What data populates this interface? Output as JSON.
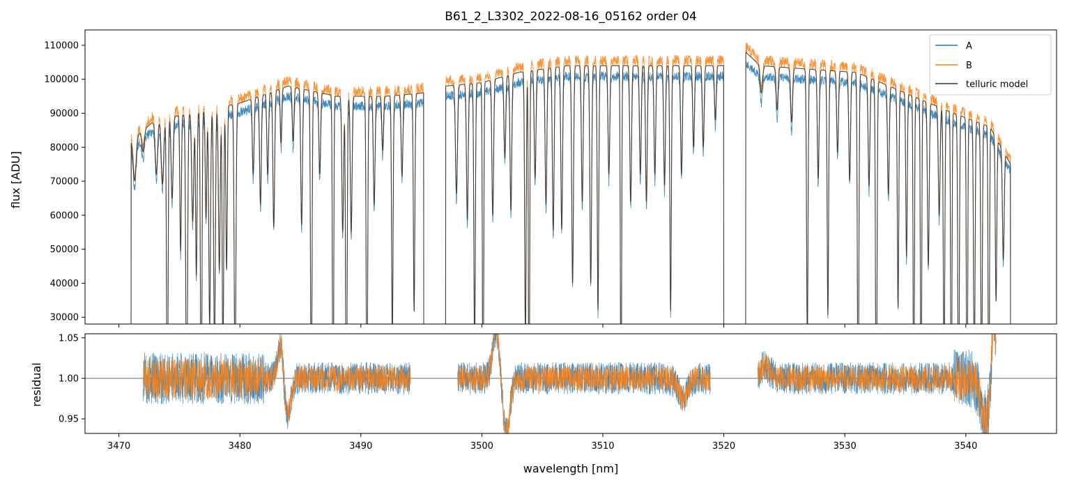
{
  "chart_data": [
    {
      "type": "line",
      "title": "B61_2_L3302_2022-08-16_05162  order 04",
      "xlabel": "",
      "ylabel": "flux [ADU]",
      "xlim": [
        3467.2,
        3547.5
      ],
      "ylim": [
        28000,
        114500
      ],
      "yticks": [
        30000,
        40000,
        50000,
        60000,
        70000,
        80000,
        90000,
        100000,
        110000
      ],
      "ytick_labels": [
        "30000",
        "40000",
        "50000",
        "60000",
        "70000",
        "80000",
        "90000",
        "100000",
        "110000"
      ],
      "xticks": [
        3470,
        3480,
        3490,
        3500,
        3510,
        3520,
        3530,
        3540
      ],
      "grid": false,
      "legend": "top-right",
      "segments": [
        [
          3471.0,
          3495.2
        ],
        [
          3497.0,
          3520.0
        ],
        [
          3521.8,
          3543.7
        ]
      ],
      "continuum": {
        "x": [
          3471,
          3473,
          3476,
          3480,
          3484,
          3488,
          3492,
          3495.2,
          3497,
          3500,
          3503,
          3507,
          3511,
          3515,
          3520,
          3521.8,
          3523,
          3527,
          3531,
          3535,
          3539,
          3542,
          3543.7
        ],
        "y": [
          82000,
          88000,
          90000,
          93000,
          98000,
          95000,
          95000,
          96000,
          98000,
          99000,
          102000,
          104000,
          104000,
          104000,
          104000,
          108000,
          104000,
          103000,
          102000,
          96000,
          90000,
          86000,
          75000
        ]
      },
      "absorption_lines": [
        [
          3471.3,
          8000,
          0.12
        ],
        [
          3472.0,
          4000,
          0.1
        ],
        [
          3473.1,
          10000,
          0.1
        ],
        [
          3473.6,
          12000,
          0.1
        ],
        [
          3474.0,
          60000,
          0.06
        ],
        [
          3474.4,
          15000,
          0.08
        ],
        [
          3475.1,
          25000,
          0.06
        ],
        [
          3475.6,
          58000,
          0.07
        ],
        [
          3476.1,
          20000,
          0.08
        ],
        [
          3476.4,
          30000,
          0.06
        ],
        [
          3476.8,
          60000,
          0.06
        ],
        [
          3477.2,
          20000,
          0.06
        ],
        [
          3477.5,
          40000,
          0.07
        ],
        [
          3477.9,
          45000,
          0.07
        ],
        [
          3478.3,
          30000,
          0.07
        ],
        [
          3478.6,
          48000,
          0.06
        ],
        [
          3478.9,
          30000,
          0.06
        ],
        [
          3479.6,
          52000,
          0.07
        ],
        [
          3481.1,
          14000,
          0.07
        ],
        [
          3481.7,
          20000,
          0.07
        ],
        [
          3482.3,
          15000,
          0.07
        ],
        [
          3482.8,
          25000,
          0.07
        ],
        [
          3483.4,
          10000,
          0.06
        ],
        [
          3484.4,
          10000,
          0.07
        ],
        [
          3485.1,
          25000,
          0.07
        ],
        [
          3485.9,
          60000,
          0.06
        ],
        [
          3486.6,
          15000,
          0.07
        ],
        [
          3487.7,
          70000,
          0.05
        ],
        [
          3488.5,
          25000,
          0.07
        ],
        [
          3488.8,
          66000,
          0.06
        ],
        [
          3489.2,
          25000,
          0.07
        ],
        [
          3490.5,
          60000,
          0.06
        ],
        [
          3491.1,
          20000,
          0.07
        ],
        [
          3491.8,
          10000,
          0.07
        ],
        [
          3492.6,
          45000,
          0.06
        ],
        [
          3493.4,
          15000,
          0.07
        ],
        [
          3494.4,
          40000,
          0.06
        ],
        [
          3497.9,
          20000,
          0.08
        ],
        [
          3498.8,
          25000,
          0.07
        ],
        [
          3499.4,
          50000,
          0.06
        ],
        [
          3500.1,
          68000,
          0.05
        ],
        [
          3500.9,
          25000,
          0.07
        ],
        [
          3501.9,
          15000,
          0.07
        ],
        [
          3502.4,
          25000,
          0.07
        ],
        [
          3503.6,
          50000,
          0.06
        ],
        [
          3503.9,
          70000,
          0.05
        ],
        [
          3504.4,
          20000,
          0.07
        ],
        [
          3505.3,
          25000,
          0.07
        ],
        [
          3505.9,
          30000,
          0.07
        ],
        [
          3506.6,
          30000,
          0.07
        ],
        [
          3507.5,
          40000,
          0.07
        ],
        [
          3508.3,
          25000,
          0.07
        ],
        [
          3509.0,
          40000,
          0.07
        ],
        [
          3509.6,
          45000,
          0.06
        ],
        [
          3510.5,
          20000,
          0.07
        ],
        [
          3511.5,
          70000,
          0.05
        ],
        [
          3512.3,
          25000,
          0.07
        ],
        [
          3513.1,
          20000,
          0.07
        ],
        [
          3513.6,
          25000,
          0.07
        ],
        [
          3514.3,
          20000,
          0.07
        ],
        [
          3515.1,
          22000,
          0.07
        ],
        [
          3515.6,
          45000,
          0.06
        ],
        [
          3516.5,
          20000,
          0.07
        ],
        [
          3517.5,
          15000,
          0.07
        ],
        [
          3518.3,
          15000,
          0.07
        ],
        [
          3519.3,
          10000,
          0.07
        ],
        [
          3523.1,
          5000,
          0.1
        ],
        [
          3524.4,
          8000,
          0.08
        ],
        [
          3525.6,
          10000,
          0.08
        ],
        [
          3526.9,
          50000,
          0.06
        ],
        [
          3527.8,
          20000,
          0.07
        ],
        [
          3528.6,
          45000,
          0.06
        ],
        [
          3529.4,
          15000,
          0.07
        ],
        [
          3530.4,
          20000,
          0.07
        ],
        [
          3531.1,
          65000,
          0.06
        ],
        [
          3532.0,
          20000,
          0.07
        ],
        [
          3532.6,
          68000,
          0.06
        ],
        [
          3533.6,
          20000,
          0.07
        ],
        [
          3534.4,
          40000,
          0.06
        ],
        [
          3535.1,
          30000,
          0.06
        ],
        [
          3535.7,
          66000,
          0.05
        ],
        [
          3536.3,
          66000,
          0.05
        ],
        [
          3536.9,
          30000,
          0.07
        ],
        [
          3537.8,
          20000,
          0.07
        ],
        [
          3538.2,
          50000,
          0.06
        ],
        [
          3538.8,
          66000,
          0.05
        ],
        [
          3539.4,
          58000,
          0.06
        ],
        [
          3540.1,
          66000,
          0.05
        ],
        [
          3540.7,
          50000,
          0.06
        ],
        [
          3541.3,
          50000,
          0.06
        ],
        [
          3541.9,
          66000,
          0.05
        ],
        [
          3542.5,
          30000,
          0.06
        ],
        [
          3543.1,
          20000,
          0.07
        ]
      ],
      "series": [
        {
          "name": "A",
          "color": "#1f77b4",
          "continuum_scale": 0.97,
          "noise": 1400
        },
        {
          "name": "B",
          "color": "#ff7f0e",
          "continuum_scale": 1.015,
          "noise": 1600
        },
        {
          "name": "telluric model",
          "color": "#333333",
          "continuum_scale": 1.0,
          "noise": 0
        }
      ]
    },
    {
      "type": "line",
      "title": "",
      "xlabel": "wavelength [nm]",
      "ylabel": "residual",
      "xlim": [
        3467.2,
        3547.5
      ],
      "ylim": [
        0.932,
        1.055
      ],
      "yticks": [
        0.95,
        1.0,
        1.05
      ],
      "ytick_labels": [
        "0.95",
        "1.00",
        "1.05"
      ],
      "xticks": [
        3470,
        3480,
        3490,
        3500,
        3510,
        3520,
        3530,
        3540
      ],
      "xtick_labels": [
        "3470",
        "3480",
        "3490",
        "3500",
        "3510",
        "3520",
        "3530",
        "3540"
      ],
      "reference_line": 1.0,
      "segments": [
        [
          3472.0,
          3494.1
        ],
        [
          3498.0,
          3518.9
        ],
        [
          3522.8,
          3542.5
        ]
      ],
      "features": [
        [
          3483.4,
          0.05,
          0.25
        ],
        [
          3483.9,
          -0.05,
          0.3
        ],
        [
          3501.2,
          0.06,
          0.3
        ],
        [
          3502.0,
          -0.07,
          0.3
        ],
        [
          3516.6,
          -0.025,
          0.4
        ],
        [
          3523.4,
          0.015,
          0.4
        ],
        [
          3541.6,
          -0.05,
          0.4
        ],
        [
          3542.3,
          0.09,
          0.15
        ]
      ],
      "series": [
        {
          "name": "A",
          "color": "#1f77b4",
          "noise": 0.02
        },
        {
          "name": "B",
          "color": "#ff7f0e",
          "noise": 0.016
        }
      ]
    }
  ]
}
